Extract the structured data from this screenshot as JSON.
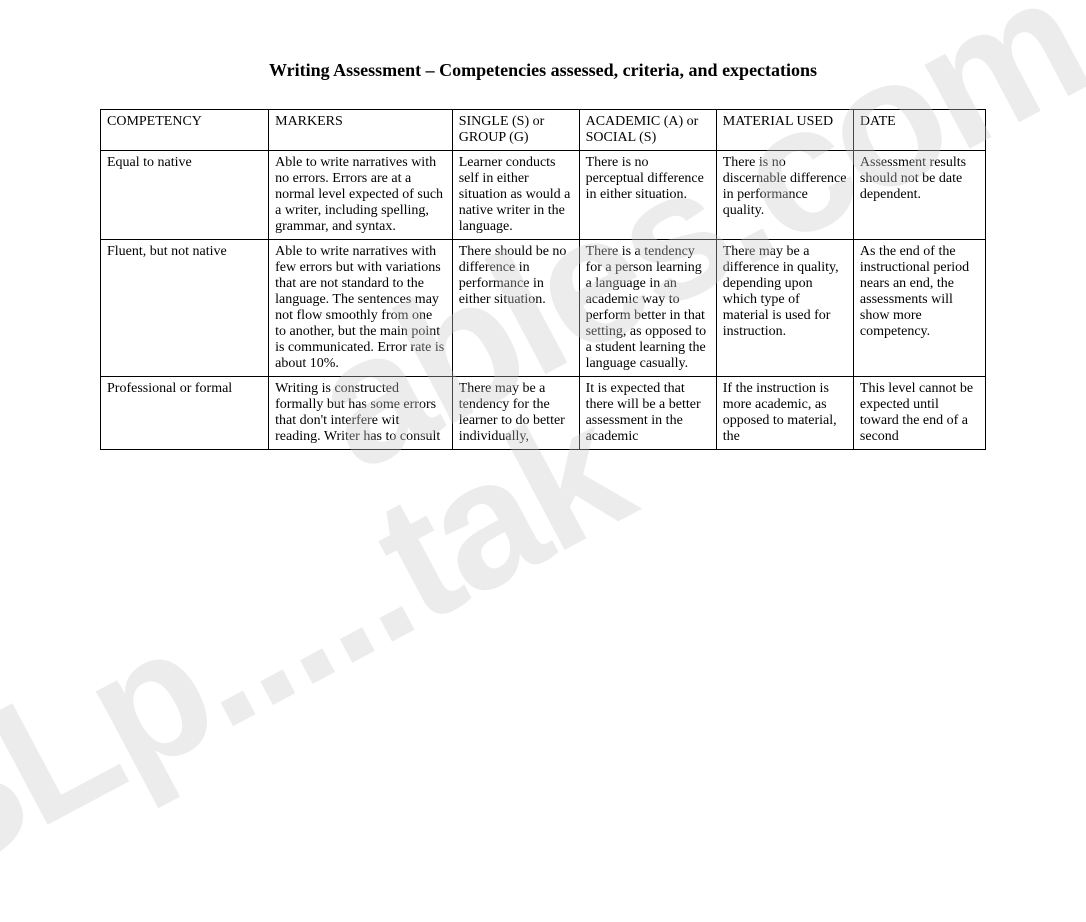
{
  "title": "Writing Assessment – Competencies assessed, criteria, and expectations",
  "watermarks": {
    "w1": "ables.com",
    "w2": "SLp.....tak"
  },
  "table": {
    "headers": {
      "competency": "COMPETENCY",
      "markers": "MARKERS",
      "single": "SINGLE (S) or GROUP (G)",
      "academic": "ACADEMIC (A) or SOCIAL (S)",
      "material": "MATERIAL USED",
      "date": "DATE"
    },
    "rows": [
      {
        "competency": "Equal to native",
        "markers": "Able to write narratives with no errors.  Errors are at a normal level expected of such a writer, including spelling, grammar, and syntax.",
        "single": "Learner conducts self in either situation as would a native writer in the language.",
        "academic": "There is no perceptual difference in either situation.",
        "material": "There is no discernable difference in performance quality.",
        "date": "Assessment results should not be date dependent."
      },
      {
        "competency": "Fluent, but not native",
        "markers": "Able to write narratives with few errors but with variations that are not standard to the language.  The sentences may not flow smoothly from one to another, but the main point is communicated.  Error rate is about 10%.",
        "single": "There should be no difference in performance in either situation.",
        "academic": "There is a tendency for a person learning a language in an academic way to perform better in that setting, as opposed to a student learning the language casually.",
        "material": "There may be a difference in quality, depending upon which type of material is used for instruction.",
        "date": "As the end of the instructional period nears an end, the assessments will show more competency."
      },
      {
        "competency": "Professional or formal",
        "markers": "Writing is constructed formally but has some errors that don't interfere wit reading.  Writer has to consult",
        "single": "There may be a tendency for the learner to do better individually,",
        "academic": "It is expected that there will be a better assessment in the academic",
        "material": "If the instruction is more academic, as opposed to material, the",
        "date": "This level cannot be expected until toward the end of a second"
      }
    ]
  }
}
